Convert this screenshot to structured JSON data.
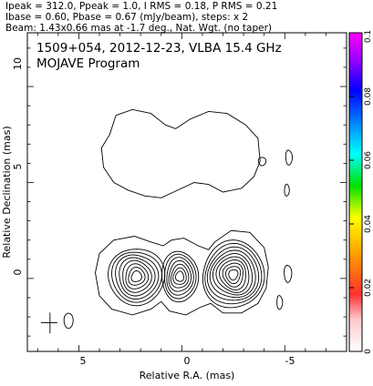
{
  "header_lines": [
    "Ipeak = 312.0, Ppeak = 1.0, I RMS = 0.18, P RMS = 0.21",
    "Ibase = 0.60, Pbase = 0.67 (mJy/beam), steps: x 2",
    "Beam: 1.43x0.66 mas at -1.7 deg., Nat. Wgt. (no taper)"
  ],
  "chart_data": {
    "type": "contour",
    "source": "1509+054",
    "date": "2012-12-23",
    "instrument": "VLBA 15.4 GHz",
    "title": "1509+054, 2012-12-23, VLBA 15.4 GHz",
    "subtitle": "MOJAVE Program",
    "xlabel": "Relative R.A. (mas)",
    "ylabel": "Relative Declination (mas)",
    "xlim": [
      7.5,
      -8.0
    ],
    "ylim": [
      -3.8,
      12.8
    ],
    "xticks": [
      5,
      0,
      -5
    ],
    "yticks": [
      0,
      5,
      10
    ],
    "colorbar": {
      "lim": [
        0,
        0.1
      ],
      "ticks": [
        0,
        0.02,
        0.04,
        0.06,
        0.08,
        0.1
      ],
      "tick_labels": [
        "0",
        "0.02",
        "0.04",
        "0.06",
        "0.08",
        "0.1"
      ]
    },
    "panels": [
      {
        "name": "total-intensity",
        "center": [
          0,
          0
        ],
        "components": [
          {
            "name": "left",
            "x": 2.2,
            "y": 0.1,
            "levels": 8,
            "rx": 1.35,
            "ry": 1.5
          },
          {
            "name": "core",
            "x": 0.1,
            "y": 0.1,
            "levels": 7,
            "rx": 0.9,
            "ry": 1.3
          },
          {
            "name": "right",
            "x": -2.5,
            "y": 0.2,
            "levels": 10,
            "rx": 1.5,
            "ry": 1.75
          }
        ]
      },
      {
        "name": "polarized-intensity",
        "center": [
          0,
          6.4
        ],
        "components": [
          {
            "name": "upper-envelope",
            "x": 0.0,
            "y": 6.4,
            "levels": 1
          }
        ]
      }
    ],
    "beam": {
      "major_mas": 1.43,
      "minor_mas": 0.66,
      "pa_deg": -1.7,
      "x": 6.4,
      "y": -2.3
    }
  }
}
